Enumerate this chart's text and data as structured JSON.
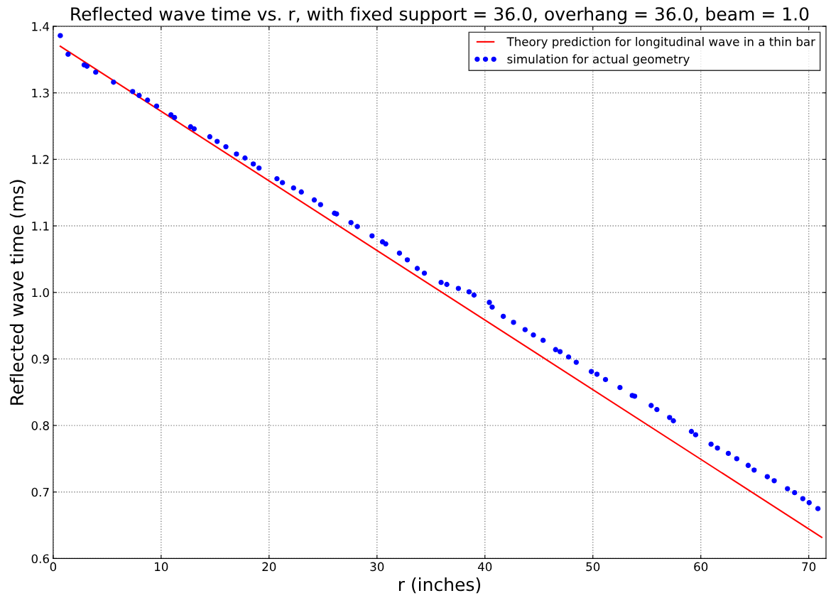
{
  "chart_data": {
    "type": "scatter",
    "title": "Reflected wave time vs. r, with fixed support = 36.0, overhang = 36.0, beam = 1.0",
    "xlabel": "r (inches)",
    "ylabel": "Reflected wave time (ms)",
    "xlim": [
      0,
      71.6
    ],
    "xticks": [
      0,
      10,
      20,
      30,
      40,
      50,
      60,
      70
    ],
    "ylim": [
      0.6,
      1.4
    ],
    "yticks": [
      {
        "value": 0.6,
        "label": "0.6"
      },
      {
        "value": 0.7,
        "label": "0.7"
      },
      {
        "value": 0.8,
        "label": "0.8"
      },
      {
        "value": 0.9,
        "label": "0.9"
      },
      {
        "value": 1.0,
        "label": "1.0"
      },
      {
        "value": 1.1,
        "label": "1.1"
      },
      {
        "value": 1.2,
        "label": "1.2"
      },
      {
        "value": 1.3,
        "label": "1.3"
      },
      {
        "value": 1.4,
        "label": "1.4"
      }
    ],
    "grid": true,
    "legend": "top right",
    "series": [
      {
        "name": "Theory prediction for longitudinal wave in a thin bar",
        "type": "line",
        "color": "#ff0000",
        "line_style": "solid",
        "marker": "none",
        "x": [
          0.66,
          71.2
        ],
        "values": [
          1.37,
          0.632
        ]
      },
      {
        "name": "simulation for actual geometry",
        "color": "#0000ff",
        "marker": "circle",
        "x": [
          0.66,
          1.38,
          2.87,
          3.13,
          3.94,
          5.59,
          7.36,
          7.96,
          8.74,
          9.58,
          10.91,
          11.24,
          12.73,
          13.06,
          14.51,
          15.19,
          16.0,
          16.98,
          17.77,
          18.54,
          19.07,
          20.73,
          21.24,
          22.27,
          22.99,
          24.19,
          24.77,
          26.06,
          26.25,
          27.59,
          28.18,
          29.54,
          30.51,
          30.81,
          32.08,
          32.81,
          33.73,
          34.39,
          35.94,
          36.47,
          37.54,
          38.53,
          38.99,
          40.41,
          40.67,
          41.7,
          42.65,
          43.72,
          44.49,
          45.39,
          46.55,
          46.96,
          47.75,
          48.46,
          49.86,
          50.38,
          51.17,
          52.51,
          53.65,
          53.87,
          55.4,
          55.93,
          57.11,
          57.46,
          59.13,
          59.52,
          60.95,
          61.54,
          62.55,
          63.33,
          64.39,
          64.94,
          66.16,
          66.8,
          68.03,
          68.69,
          69.45,
          70.04,
          70.85
        ],
        "values": [
          1.386,
          1.358,
          1.342,
          1.34,
          1.331,
          1.316,
          1.302,
          1.296,
          1.289,
          1.28,
          1.267,
          1.263,
          1.249,
          1.246,
          1.234,
          1.227,
          1.219,
          1.208,
          1.202,
          1.193,
          1.187,
          1.171,
          1.165,
          1.157,
          1.151,
          1.139,
          1.132,
          1.119,
          1.118,
          1.105,
          1.099,
          1.085,
          1.076,
          1.073,
          1.059,
          1.049,
          1.036,
          1.029,
          1.015,
          1.012,
          1.006,
          1.001,
          0.996,
          0.985,
          0.978,
          0.964,
          0.955,
          0.944,
          0.936,
          0.928,
          0.914,
          0.911,
          0.903,
          0.895,
          0.881,
          0.877,
          0.869,
          0.857,
          0.845,
          0.844,
          0.83,
          0.824,
          0.812,
          0.807,
          0.791,
          0.786,
          0.772,
          0.766,
          0.758,
          0.75,
          0.74,
          0.733,
          0.723,
          0.717,
          0.705,
          0.699,
          0.69,
          0.684,
          0.675
        ]
      }
    ]
  }
}
